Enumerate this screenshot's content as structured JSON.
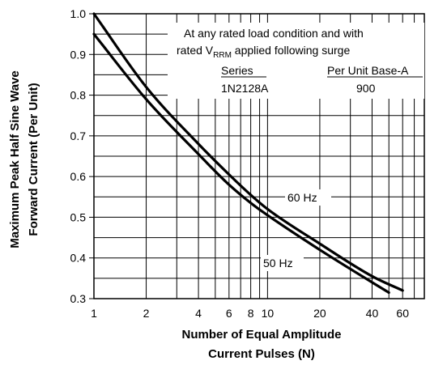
{
  "chart_data": {
    "type": "line",
    "title": "",
    "xlabel": [
      "Number of Equal Amplitude",
      "Current Pulses (N)"
    ],
    "ylabel": [
      "Maximum Peak Half Sine Wave",
      "Forward Current (Per Unit)"
    ],
    "x_scale": "log",
    "xlim": [
      1,
      80
    ],
    "ylim": [
      0.3,
      1.0
    ],
    "grid": true,
    "x_tick_labels": [
      "1",
      "2",
      "4",
      "6",
      "8",
      "10",
      "20",
      "40",
      "60"
    ],
    "y_tick_labels": [
      "0.3",
      "0.4",
      "0.5",
      "0.6",
      "0.7",
      "0.8",
      "0.9",
      "1.0"
    ],
    "series": [
      {
        "name": "60 Hz",
        "x": [
          1,
          2,
          4,
          6,
          8,
          10,
          20,
          40,
          60
        ],
        "y": [
          1.0,
          0.82,
          0.68,
          0.605,
          0.555,
          0.52,
          0.435,
          0.355,
          0.32
        ]
      },
      {
        "name": "50 Hz",
        "x": [
          1,
          2,
          4,
          6,
          8,
          10,
          20,
          40,
          50
        ],
        "y": [
          0.95,
          0.79,
          0.655,
          0.58,
          0.535,
          0.505,
          0.42,
          0.34,
          0.315
        ]
      }
    ],
    "annotations": {
      "note_line1": "At any rated load condition and with",
      "note_line2_prefix": "rated V",
      "note_line2_sub": "RRM",
      "note_line2_suffix": " applied following surge",
      "table_header_series": "Series",
      "table_header_base": "Per Unit Base-A",
      "table_series": "1N2128A",
      "table_base": "900"
    }
  }
}
